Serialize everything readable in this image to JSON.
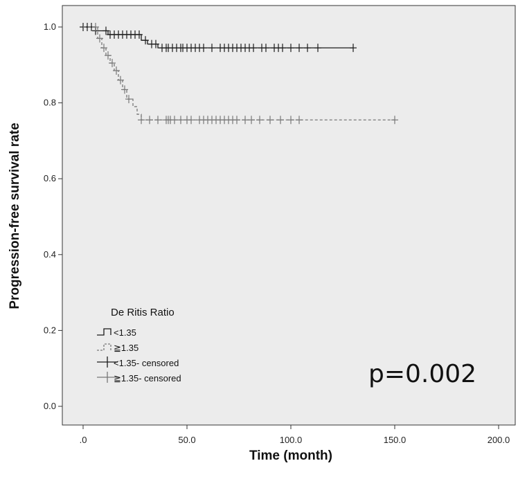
{
  "chart_data": {
    "type": "line",
    "subtype": "kaplan-meier",
    "xlabel": "Time (month)",
    "ylabel": "Progression-free survival rate",
    "xlim": [
      0,
      200
    ],
    "ylim": [
      0,
      1
    ],
    "x_ticks": [
      ".0",
      "50.0",
      "100.0",
      "150.0",
      "200.0"
    ],
    "y_ticks": [
      "0.0",
      "0.2",
      "0.4",
      "0.6",
      "0.8",
      "1.0"
    ],
    "grid": false,
    "background": "#ececec",
    "legend": {
      "title": "De Ritis Ratio",
      "position": "bottom-left",
      "entries": [
        "<1.35",
        "≧1.35",
        "<1.35- censored",
        "≧1.35- censored"
      ]
    },
    "annotation": "p=0.002",
    "series": [
      {
        "name": "<1.35",
        "style": "solid",
        "color": "#1a1a1a",
        "steps": [
          [
            0,
            1.0
          ],
          [
            6,
            0.99
          ],
          [
            12,
            0.98
          ],
          [
            28,
            0.965
          ],
          [
            31,
            0.955
          ],
          [
            36,
            0.945
          ],
          [
            130,
            0.945
          ]
        ],
        "censored": [
          0,
          2,
          4,
          6,
          11,
          13,
          15,
          17,
          19,
          21,
          23,
          25,
          27,
          30,
          33,
          35,
          38,
          40,
          41,
          43,
          45,
          47,
          48,
          50,
          52,
          54,
          56,
          58,
          62,
          66,
          68,
          70,
          72,
          74,
          76,
          78,
          80,
          82,
          86,
          88,
          92,
          94,
          96,
          100,
          104,
          108,
          113,
          130
        ]
      },
      {
        "name": "≧1.35",
        "style": "dashed",
        "color": "#777777",
        "steps": [
          [
            0,
            1.0
          ],
          [
            7,
            0.97
          ],
          [
            9,
            0.945
          ],
          [
            11,
            0.925
          ],
          [
            13,
            0.905
          ],
          [
            15,
            0.885
          ],
          [
            17,
            0.86
          ],
          [
            19,
            0.835
          ],
          [
            21,
            0.81
          ],
          [
            24,
            0.79
          ],
          [
            26,
            0.77
          ],
          [
            28,
            0.755
          ],
          [
            150,
            0.755
          ]
        ],
        "censored": [
          6,
          8,
          10,
          12,
          14,
          16,
          18,
          20,
          22,
          28,
          32,
          36,
          40,
          41,
          42,
          44,
          47,
          50,
          52,
          56,
          58,
          60,
          62,
          64,
          66,
          68,
          70,
          72,
          74,
          78,
          81,
          85,
          90,
          95,
          100,
          104,
          150
        ]
      }
    ]
  }
}
